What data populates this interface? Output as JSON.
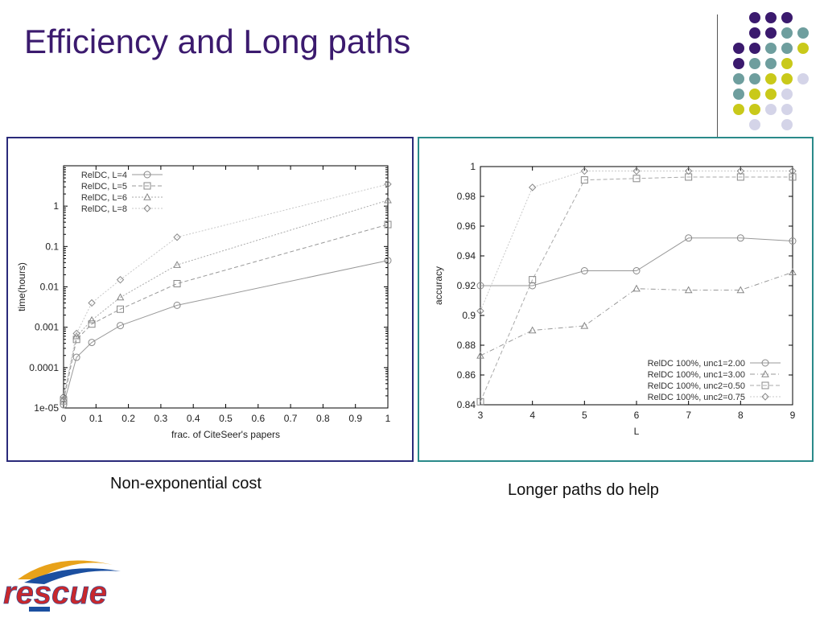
{
  "slide": {
    "title": "Efficiency and Long paths",
    "caption_left": "Non-exponential cost",
    "caption_right": "Longer paths do help",
    "logo_text": "rescue",
    "colors": {
      "title": "#3b1a6e",
      "purple": "#3b1a6e",
      "teal": "#6e9e9e",
      "yellow": "#c9c91a",
      "lavender": "#d4d4e8",
      "left_border": "#2a2a7a",
      "right_border": "#2a8a8a"
    }
  },
  "chart_data": [
    {
      "type": "line",
      "xlabel": "frac. of CiteSeer's papers",
      "ylabel": "time(hours)",
      "yscale": "log",
      "xlim": [
        0,
        1
      ],
      "ylim": [
        1e-05,
        10
      ],
      "xticks": [
        "0",
        "0.1",
        "0.2",
        "0.3",
        "0.4",
        "0.5",
        "0.6",
        "0.7",
        "0.8",
        "0.9",
        "1"
      ],
      "yticks": [
        "1e-05",
        "0.0001",
        "0.001",
        "0.01",
        "0.1",
        "1"
      ],
      "legend_position": "top-left",
      "series": [
        {
          "name": "RelDC, L=4",
          "marker": "circle",
          "dash": "solid",
          "x": [
            0,
            0.04,
            0.087,
            0.175,
            0.35,
            1
          ],
          "y": [
            1.2e-05,
            0.00018,
            0.00042,
            0.0011,
            0.0035,
            0.045
          ]
        },
        {
          "name": "RelDC, L=5",
          "marker": "square",
          "dash": "dashed",
          "x": [
            0,
            0.04,
            0.087,
            0.175,
            0.35,
            1
          ],
          "y": [
            1.5e-05,
            0.0005,
            0.0012,
            0.0028,
            0.012,
            0.35
          ]
        },
        {
          "name": "RelDC, L=6",
          "marker": "triangle",
          "dash": "dotted",
          "x": [
            0,
            0.04,
            0.087,
            0.175,
            0.35,
            1
          ],
          "y": [
            1.7e-05,
            0.0006,
            0.0015,
            0.0055,
            0.035,
            1.4
          ]
        },
        {
          "name": "RelDC, L=8",
          "marker": "diamond",
          "dash": "dotted",
          "x": [
            0,
            0.04,
            0.087,
            0.175,
            0.35,
            1
          ],
          "y": [
            1.9e-05,
            0.0007,
            0.004,
            0.015,
            0.17,
            3.5
          ]
        }
      ]
    },
    {
      "type": "line",
      "xlabel": "L",
      "ylabel": "accuracy",
      "xlim": [
        3,
        9
      ],
      "ylim": [
        0.84,
        1
      ],
      "xticks": [
        "3",
        "4",
        "5",
        "6",
        "7",
        "8",
        "9"
      ],
      "yticks": [
        "0.84",
        "0.86",
        "0.88",
        "0.9",
        "0.92",
        "0.94",
        "0.96",
        "0.98",
        "1"
      ],
      "legend_position": "bottom-right",
      "series": [
        {
          "name": "RelDC 100%, unc1=2.00",
          "marker": "circle",
          "dash": "solid",
          "x": [
            3,
            4,
            5,
            6,
            7,
            8,
            9
          ],
          "y": [
            0.92,
            0.92,
            0.93,
            0.93,
            0.952,
            0.952,
            0.95
          ]
        },
        {
          "name": "RelDC 100%, unc1=3.00",
          "marker": "triangle",
          "dash": "dashdot",
          "x": [
            3,
            4,
            5,
            6,
            7,
            8,
            9
          ],
          "y": [
            0.873,
            0.89,
            0.893,
            0.918,
            0.917,
            0.917,
            0.929
          ]
        },
        {
          "name": "RelDC 100%, unc2=0.50",
          "marker": "square",
          "dash": "dashed",
          "x": [
            3,
            4,
            5,
            6,
            7,
            8,
            9
          ],
          "y": [
            0.842,
            0.924,
            0.991,
            0.992,
            0.993,
            0.993,
            0.993
          ]
        },
        {
          "name": "RelDC 100%, unc2=0.75",
          "marker": "diamond",
          "dash": "dotted",
          "x": [
            3,
            4,
            5,
            6,
            7,
            8,
            9
          ],
          "y": [
            0.903,
            0.986,
            0.997,
            0.997,
            0.997,
            0.997,
            0.997
          ]
        }
      ]
    }
  ]
}
